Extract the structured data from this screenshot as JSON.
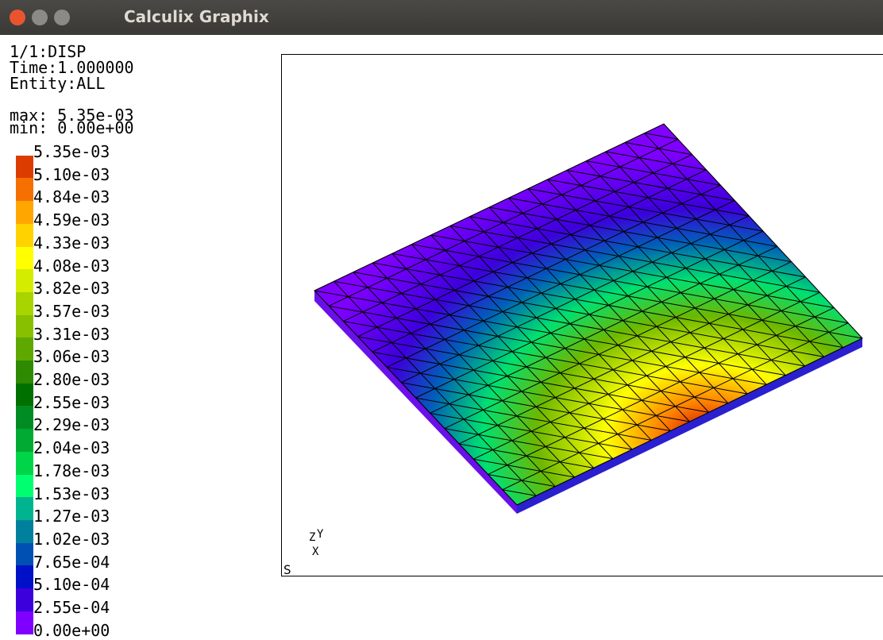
{
  "window": {
    "title": "Calculix Graphix"
  },
  "info": {
    "lines": [
      "1/1:DISP",
      "Time:1.000000",
      "Entity:ALL"
    ],
    "max": "max: 5.35e-03",
    "min": "min: 0.00e+00"
  },
  "legend": {
    "labels": [
      "5.35e-03",
      "5.10e-03",
      "4.84e-03",
      "4.59e-03",
      "4.33e-03",
      "4.08e-03",
      "3.82e-03",
      "3.57e-03",
      "3.31e-03",
      "3.06e-03",
      "2.80e-03",
      "2.55e-03",
      "2.29e-03",
      "2.04e-03",
      "1.78e-03",
      "1.53e-03",
      "1.27e-03",
      "1.02e-03",
      "7.65e-04",
      "5.10e-04",
      "2.55e-04",
      "0.00e+00"
    ],
    "colors": [
      "#c40000",
      "#dd3c00",
      "#f57000",
      "#ffa600",
      "#ffd200",
      "#ffff00",
      "#d4ec00",
      "#a8d400",
      "#88c000",
      "#5ea800",
      "#2e8a00",
      "#007000",
      "#008c22",
      "#00aa33",
      "#00d448",
      "#00ff70",
      "#00b490",
      "#00809c",
      "#0050b4",
      "#0010c8",
      "#3c00dc",
      "#8000ff"
    ]
  },
  "viewport": {
    "corner_label": "S",
    "triad": [
      "Z",
      "Y",
      "X"
    ]
  }
}
